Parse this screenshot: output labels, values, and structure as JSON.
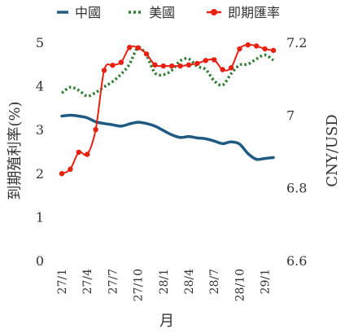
{
  "chart_data": {
    "type": "line",
    "xlabel": "月",
    "ylabel_left": "到期殖利率(%)",
    "ylabel_right": "CNY/USD",
    "x": [
      "27/1",
      "27/2",
      "27/3",
      "27/4",
      "27/5",
      "27/6",
      "27/7",
      "27/8",
      "27/9",
      "27/10",
      "27/11",
      "27/12",
      "28/1",
      "28/2",
      "28/3",
      "28/4",
      "28/5",
      "28/6",
      "28/7",
      "28/8",
      "28/9",
      "28/10",
      "28/11",
      "28/12",
      "29/1",
      "29/2"
    ],
    "x_tick_labels": [
      "27/1",
      "",
      "",
      "27/4",
      "",
      "",
      "27/7",
      "",
      "",
      "27/10",
      "",
      "",
      "28/1",
      "",
      "",
      "28/4",
      "",
      "",
      "28/7",
      "",
      "",
      "28/10",
      "",
      "",
      "29/1",
      ""
    ],
    "ylim_left": [
      0,
      5
    ],
    "yticks_left": [
      0,
      1,
      2,
      3,
      4,
      5
    ],
    "ylim_right": [
      6.6,
      7.2
    ],
    "yticks_right": [
      "6.6",
      "6.7",
      "6.8",
      "6.9",
      "7",
      "7.1",
      "7.2"
    ],
    "yticks_right_display": [
      "6.6",
      "6.8",
      "7",
      "7.2"
    ],
    "legend_position": "top",
    "grid": false,
    "series": [
      {
        "name": "中國",
        "axis": "left",
        "style": "solid",
        "color": "#1f5a82",
        "values": [
          3.31,
          3.33,
          3.31,
          3.27,
          3.18,
          3.14,
          3.11,
          3.08,
          3.13,
          3.17,
          3.14,
          3.08,
          2.98,
          2.88,
          2.82,
          2.84,
          2.81,
          2.79,
          2.74,
          2.68,
          2.72,
          2.67,
          2.45,
          2.32,
          2.34,
          2.36
        ]
      },
      {
        "name": "美國",
        "axis": "left",
        "style": "dotted",
        "color": "#2e7d32",
        "values": [
          3.84,
          3.97,
          3.9,
          3.77,
          3.85,
          3.98,
          4.1,
          4.27,
          4.5,
          4.88,
          4.7,
          4.3,
          4.26,
          4.36,
          4.58,
          4.62,
          4.45,
          4.38,
          4.12,
          4.02,
          4.28,
          4.48,
          4.5,
          4.62,
          4.71,
          4.59
        ]
      },
      {
        "name": "即期匯率",
        "axis": "right",
        "style": "line-markers",
        "color": "#e82010",
        "values": [
          6.839,
          6.851,
          6.898,
          6.892,
          6.96,
          7.123,
          7.137,
          7.145,
          7.186,
          7.185,
          7.168,
          7.138,
          7.135,
          7.135,
          7.135,
          7.138,
          7.142,
          7.15,
          7.152,
          7.125,
          7.13,
          7.182,
          7.193,
          7.19,
          7.182,
          7.178
        ]
      }
    ]
  }
}
